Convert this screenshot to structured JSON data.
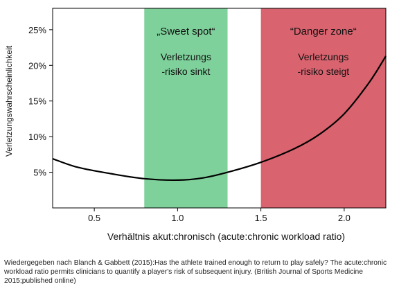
{
  "chart_data": {
    "type": "line",
    "xlabel": "Verhältnis akut:chronisch (acute:chronic workload ratio)",
    "ylabel": "Verletzungswahrscheinlichkeit",
    "xlim": [
      0.25,
      2.25
    ],
    "ylim": [
      0.0,
      0.28
    ],
    "x_ticks": [
      0.5,
      1.0,
      1.5,
      2.0
    ],
    "x_tick_labels": [
      "0.5",
      "1.0",
      "1.5",
      "2.0"
    ],
    "y_ticks": [
      0.05,
      0.1,
      0.15,
      0.2,
      0.25
    ],
    "y_tick_labels": [
      "5%",
      "10%",
      "15%",
      "20%",
      "25%"
    ],
    "grid": false,
    "series": [
      {
        "color": "#000000",
        "x": [
          0.25,
          0.4,
          0.6,
          0.8,
          1.0,
          1.15,
          1.3,
          1.5,
          1.7,
          1.85,
          2.0,
          2.15,
          2.25
        ],
        "y": [
          0.069,
          0.057,
          0.048,
          0.041,
          0.039,
          0.042,
          0.05,
          0.064,
          0.083,
          0.103,
          0.132,
          0.176,
          0.213
        ]
      }
    ],
    "zones": [
      {
        "x_range": [
          0.8,
          1.3
        ],
        "color": "#7fd19b",
        "title": "„Sweet spot“",
        "lines": [
          "Verletzungs",
          "-risiko sinkt"
        ]
      },
      {
        "x_range": [
          1.5,
          2.25
        ],
        "color": "#d9636e",
        "title": "“Danger zone“",
        "lines": [
          "Verletzungs",
          "-risiko steigt"
        ]
      }
    ]
  },
  "caption": "Wiedergegeben nach Blanch & Gabbett (2015):Has the athlete trained enough to return to play safely? The acute:chronic workload ratio permits clinicians to quantify a player's risk of subsequent injury. (British Journal of Sports Medicine 2015;published online)"
}
